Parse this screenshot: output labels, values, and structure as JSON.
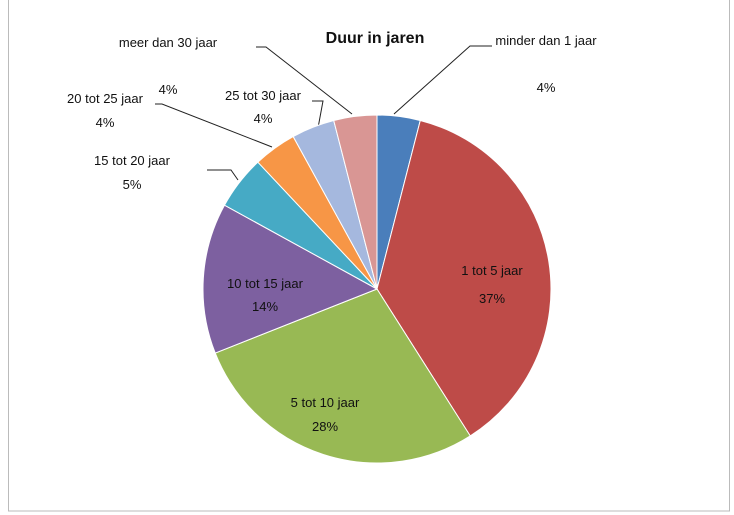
{
  "chart_data": {
    "type": "pie",
    "title": "Duur in jaren",
    "categories": [
      "minder dan 1 jaar",
      "1 tot 5 jaar",
      "5 tot 10 jaar",
      "10 tot 15 jaar",
      "15 tot 20 jaar",
      "20 tot 25 jaar",
      "25 tot 30 jaar",
      "meer dan 30 jaar"
    ],
    "values": [
      4,
      37,
      28,
      14,
      5,
      4,
      4,
      4
    ],
    "value_labels": [
      "4%",
      "37%",
      "28%",
      "14%",
      "5%",
      "4%",
      "4%",
      "4%"
    ],
    "colors": [
      "#4a7ebb",
      "#be4b48",
      "#98b954",
      "#7d60a0",
      "#46aac5",
      "#f79646",
      "#a5b8de",
      "#d99694"
    ]
  }
}
